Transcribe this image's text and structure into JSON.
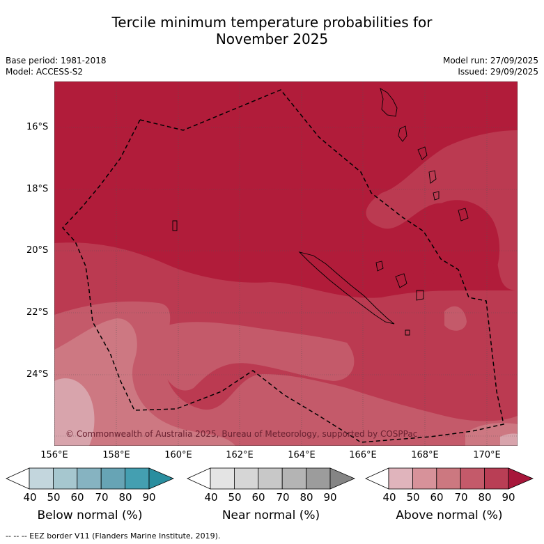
{
  "title": {
    "line1": "Tercile minimum temperature probabilities for",
    "line2": "November 2025"
  },
  "meta": {
    "base_period": "Base period: 1981-2018",
    "model": "Model: ACCESS-S2",
    "model_run": "Model run: 27/09/2025",
    "issued": "Issued: 29/09/2025"
  },
  "map": {
    "copyright": "© Commonwealth of Australia 2025, Bureau of Meteorology, supported by COSPPac",
    "lat_labels": [
      "16°S",
      "18°S",
      "20°S",
      "22°S",
      "24°S"
    ],
    "lon_labels": [
      "156°E",
      "158°E",
      "160°E",
      "162°E",
      "164°E",
      "166°E",
      "168°E",
      "170°E"
    ],
    "colors": {
      "above_80_90": "#b11c3a",
      "above_70_80": "#bb3a51",
      "above_60_70": "#c45a6a",
      "above_50_60": "#cd7882",
      "above_40_50": "#d8a4ac"
    }
  },
  "colorbars": [
    {
      "label": "Below normal (%)",
      "ticks": [
        "40",
        "50",
        "60",
        "70",
        "80",
        "90"
      ],
      "colors": [
        "#ffffff",
        "#c3d6dd",
        "#a6c7cf",
        "#86b3c1",
        "#67a4b5",
        "#449fb1",
        "#2a8e9f"
      ]
    },
    {
      "label": "Near normal (%)",
      "ticks": [
        "40",
        "50",
        "60",
        "70",
        "80",
        "90"
      ],
      "colors": [
        "#ffffff",
        "#e4e4e4",
        "#d6d6d6",
        "#c8c8c8",
        "#b4b4b4",
        "#9c9c9c",
        "#858585"
      ]
    },
    {
      "label": "Above normal (%)",
      "ticks": [
        "40",
        "50",
        "60",
        "70",
        "80",
        "90"
      ],
      "colors": [
        "#ffffff",
        "#e0b4bc",
        "#d7929a",
        "#cc7880",
        "#c45a6a",
        "#b93e55",
        "#a7163a"
      ]
    }
  ],
  "footer": "--  --  -- EEZ border V11 (Flanders Marine Institute, 2019)."
}
